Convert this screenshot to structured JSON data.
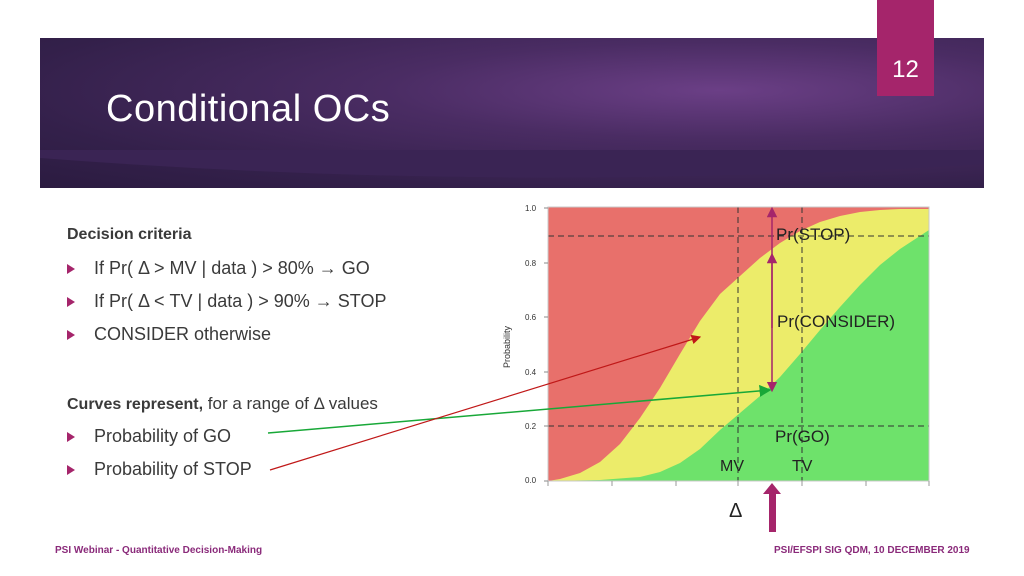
{
  "slide": {
    "title": "Conditional OCs",
    "page_number": "12",
    "colors": {
      "accent": "#a5256b",
      "band": "#4a2c63"
    }
  },
  "content": {
    "decision_heading": "Decision criteria",
    "decision_items": [
      "If Pr( Δ > MV | data ) > 80% → GO",
      "If Pr( Δ < TV | data ) > 90% → STOP",
      "CONSIDER otherwise"
    ],
    "curves_heading_bold": "Curves represent,",
    "curves_heading_rest": " for a range of Δ values",
    "curve_items": [
      "Probability of GO",
      "Probability of STOP"
    ]
  },
  "chart_data": {
    "type": "area",
    "ylabel": "Probability",
    "ylim": [
      0,
      1
    ],
    "yticks": [
      "0.0",
      "0.2",
      "0.4",
      "0.6",
      "0.8",
      "1.0"
    ],
    "thresholds_y": [
      0.2,
      0.9
    ],
    "regions": [
      {
        "name": "Pr(STOP)",
        "color": "#e8706b"
      },
      {
        "name": "Pr(CONSIDER)",
        "color": "#ecec6a"
      },
      {
        "name": "Pr(GO)",
        "color": "#6ee26b"
      }
    ],
    "annotations": {
      "stop": "Pr(STOP)",
      "consider": "Pr(CONSIDER)",
      "go": "Pr(GO)",
      "mv": "MV",
      "tv": "TV",
      "delta": "Δ"
    }
  },
  "footer": {
    "left": "PSI Webinar - Quantitative Decision-Making",
    "right": "PSI/EFSPI SIG QDM, 10 DECEMBER 2019"
  }
}
